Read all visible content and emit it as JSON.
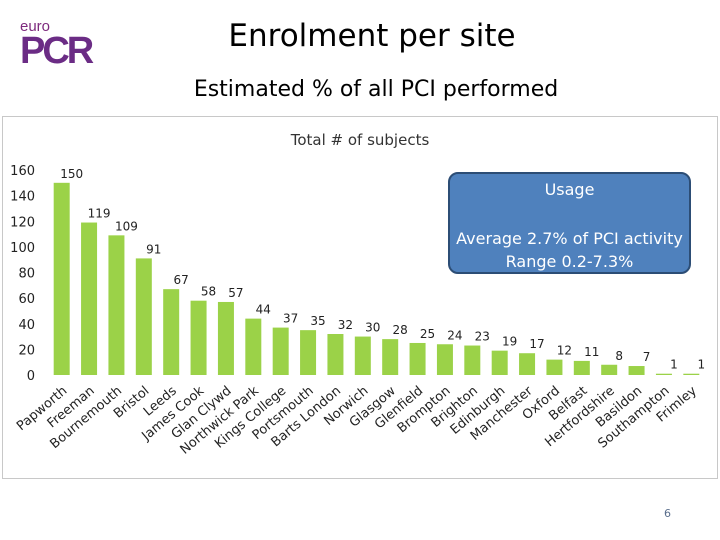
{
  "logo": {
    "small": "euro",
    "big": "PCR"
  },
  "slide": {
    "title": "Enrolment per site",
    "subtitle": "Estimated % of all PCI performed",
    "page_number": "6"
  },
  "callout": {
    "heading": "Usage",
    "line1": "Average 2.7% of PCI activity",
    "line2": "Range 0.2-7.3%"
  },
  "colors": {
    "bar": "#9bd248",
    "callout": "#4f81bd",
    "logo": "#6b2c85"
  },
  "chart_data": {
    "type": "bar",
    "title": "Total # of subjects",
    "xlabel": "",
    "ylabel": "",
    "ylim": [
      0,
      160
    ],
    "yticks": [
      0,
      20,
      40,
      60,
      80,
      100,
      120,
      140,
      160
    ],
    "categories": [
      "Papworth",
      "Freeman",
      "Bournemouth",
      "Bristol",
      "Leeds",
      "James Cook",
      "Glan Clywd",
      "Northwick Park",
      "Kings College",
      "Portsmouth",
      "Barts London",
      "Norwich",
      "Glasgow",
      "Glenfield",
      "Brompton",
      "Brighton",
      "Edinburgh",
      "Manchester",
      "Oxford",
      "Belfast",
      "Hertfordshire",
      "Basildon",
      "Southampton",
      "Frimley"
    ],
    "values": [
      150,
      119,
      109,
      91,
      67,
      58,
      57,
      44,
      37,
      35,
      32,
      30,
      28,
      25,
      24,
      23,
      19,
      17,
      12,
      11,
      8,
      7,
      1,
      1
    ]
  }
}
